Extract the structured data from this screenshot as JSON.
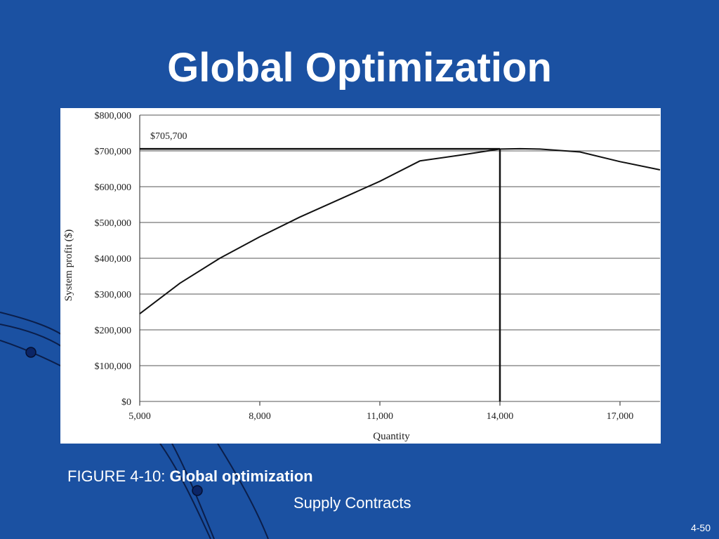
{
  "slide": {
    "title": "Global Optimization",
    "caption_prefix": "FIGURE 4-10: ",
    "caption_bold": "Global optimization",
    "subtitle": "Supply Contracts",
    "page_number": "4-50",
    "background_color": "#1b51a2",
    "text_color": "#ffffff"
  },
  "chart_data": {
    "type": "line",
    "title": "",
    "xlabel": "Quantity",
    "ylabel": "System profit ($)",
    "xlim": [
      5000,
      18000
    ],
    "ylim": [
      0,
      800000
    ],
    "x_ticks": [
      5000,
      8000,
      11000,
      14000,
      17000
    ],
    "x_tick_labels": [
      "5,000",
      "8,000",
      "11,000",
      "14,000",
      "17,000"
    ],
    "y_ticks": [
      0,
      100000,
      200000,
      300000,
      400000,
      500000,
      600000,
      700000,
      800000
    ],
    "y_tick_labels": [
      "$0",
      "$100,000",
      "$200,000",
      "$300,000",
      "$400,000",
      "$500,000",
      "$600,000",
      "$700,000",
      "$800,000"
    ],
    "grid": "horizontal",
    "series": [
      {
        "x": [
          5000,
          6000,
          7000,
          8000,
          9000,
          10000,
          11000,
          12000,
          13000,
          14000,
          14500,
          15000,
          16000,
          17000,
          18000
        ],
        "y": [
          245000,
          330000,
          400000,
          460000,
          515000,
          565000,
          615000,
          672000,
          688000,
          705000,
          706000,
          705000,
          697000,
          670000,
          647000
        ]
      }
    ],
    "annotation": {
      "label": "$705,700",
      "x": 14000,
      "y": 705700
    }
  }
}
